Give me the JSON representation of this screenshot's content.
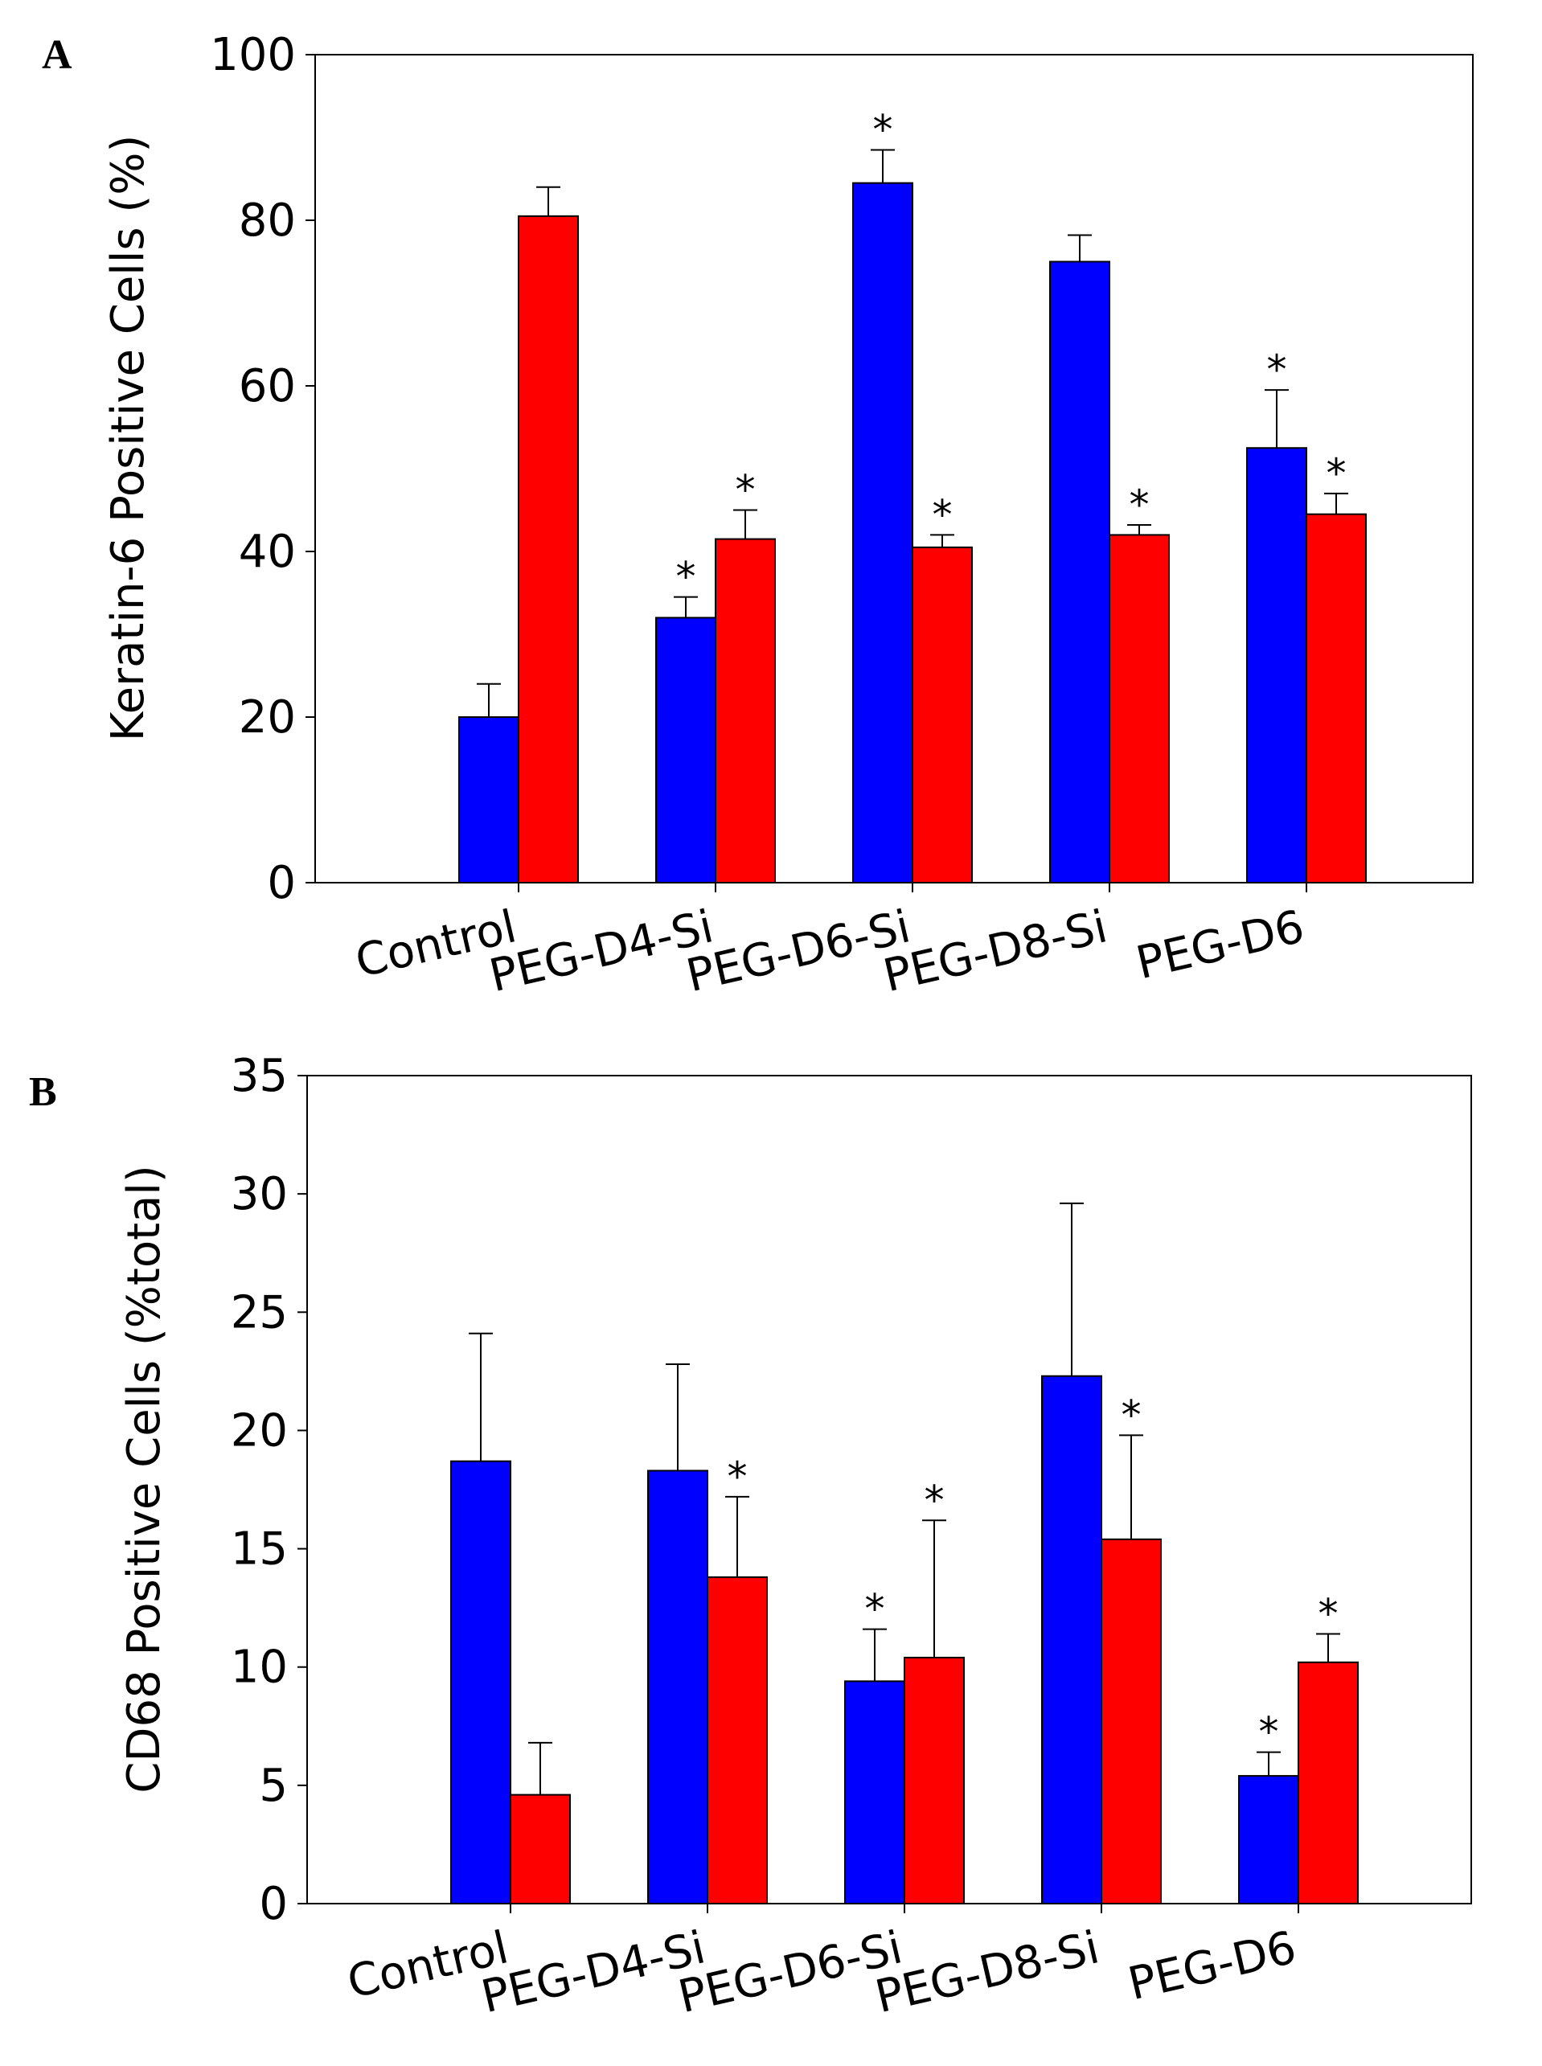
{
  "colors": {
    "series1": "#0000ff",
    "series2": "#ff0000",
    "axis": "#000000",
    "background": "#ffffff"
  },
  "chart_data": [
    {
      "type": "bar",
      "panel_label": "A",
      "ylabel": "Keratin-6 Positive Cells (%)",
      "xlabel": "",
      "ylim": [
        0,
        100
      ],
      "yticks": [
        "0",
        "20",
        "40",
        "60",
        "80",
        "100"
      ],
      "categories": [
        "Control",
        "PEG-D4-Si",
        "PEG-D6-Si",
        "PEG-D8-Si",
        "PEG-D6"
      ],
      "series": [
        {
          "name": "blue",
          "color": "#0000ff",
          "values": [
            20,
            32,
            84.5,
            75,
            52.5
          ],
          "errors": [
            4,
            2.5,
            4,
            3.2,
            7
          ],
          "significant": [
            false,
            true,
            true,
            false,
            true
          ]
        },
        {
          "name": "red",
          "color": "#ff0000",
          "values": [
            80.5,
            41.5,
            40.5,
            42,
            44.5
          ],
          "errors": [
            3.5,
            3.5,
            1.5,
            1.2,
            2.5
          ],
          "significant": [
            false,
            true,
            true,
            true,
            true
          ]
        }
      ],
      "significance_marker": "*"
    },
    {
      "type": "bar",
      "panel_label": "B",
      "ylabel": "CD68 Positive Cells (%total)",
      "xlabel": "",
      "ylim": [
        0,
        35
      ],
      "yticks": [
        "0",
        "5",
        "10",
        "15",
        "20",
        "25",
        "30",
        "35"
      ],
      "categories": [
        "Control",
        "PEG-D4-Si",
        "PEG-D6-Si",
        "PEG-D8-Si",
        "PEG-D6"
      ],
      "series": [
        {
          "name": "blue",
          "color": "#0000ff",
          "values": [
            18.7,
            18.3,
            9.4,
            22.3,
            5.4
          ],
          "errors": [
            5.4,
            4.5,
            2.2,
            7.3,
            1.0
          ],
          "significant": [
            false,
            false,
            true,
            false,
            true
          ]
        },
        {
          "name": "red",
          "color": "#ff0000",
          "values": [
            4.6,
            13.8,
            10.4,
            15.4,
            10.2
          ],
          "errors": [
            2.2,
            3.4,
            5.8,
            4.4,
            1.2
          ],
          "significant": [
            false,
            true,
            true,
            true,
            true
          ]
        }
      ],
      "significance_marker": "*"
    }
  ]
}
